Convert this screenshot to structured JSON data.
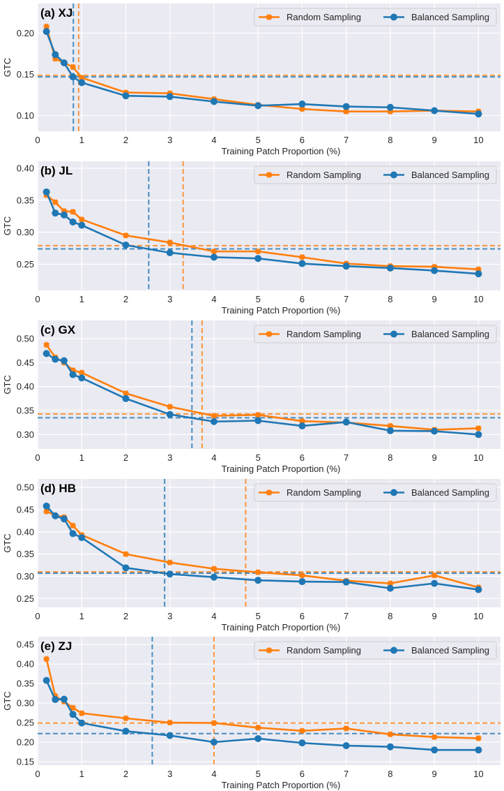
{
  "colors": {
    "random": "#ff7f0e",
    "balanced": "#1f77b4",
    "background": "#eaeaf2",
    "grid": "#ffffff"
  },
  "chart_data": [
    {
      "type": "line",
      "title": "(a) XJ",
      "xlabel": "Training Patch Proportion (%)",
      "ylabel": "GTC",
      "xlim": [
        0,
        10.5
      ],
      "ylim": [
        0.081,
        0.236
      ],
      "xticks": [
        0,
        1,
        2,
        3,
        4,
        5,
        6,
        7,
        8,
        9,
        10
      ],
      "yticks": [
        0.1,
        0.15,
        0.2
      ],
      "ytick_labels": [
        "0.10",
        "0.15",
        "0.20"
      ],
      "grid": true,
      "legend_position": "top-right",
      "x": [
        0.2,
        0.4,
        0.6,
        0.8,
        1,
        2,
        3,
        4,
        5,
        6,
        7,
        8,
        9,
        10
      ],
      "series": [
        {
          "name": "Random Sampling",
          "marker": "x",
          "values": [
            0.208,
            0.169,
            0.164,
            0.159,
            0.146,
            0.128,
            0.127,
            0.12,
            0.113,
            0.108,
            0.105,
            0.105,
            0.106,
            0.105
          ],
          "hline": 0.149,
          "vline": 0.93
        },
        {
          "name": "Balanced Sampling",
          "marker": "o",
          "values": [
            0.202,
            0.174,
            0.164,
            0.147,
            0.14,
            0.124,
            0.123,
            0.117,
            0.112,
            0.114,
            0.111,
            0.11,
            0.106,
            0.102
          ],
          "hline": 0.147,
          "vline": 0.81
        }
      ]
    },
    {
      "type": "line",
      "title": "(b) JL",
      "xlabel": "Training Patch Proportion (%)",
      "ylabel": "GTC",
      "xlim": [
        0,
        10.5
      ],
      "ylim": [
        0.209,
        0.411
      ],
      "xticks": [
        0,
        1,
        2,
        3,
        4,
        5,
        6,
        7,
        8,
        9,
        10
      ],
      "yticks": [
        0.25,
        0.3,
        0.35,
        0.4
      ],
      "ytick_labels": [
        "0.25",
        "0.30",
        "0.35",
        "0.40"
      ],
      "grid": true,
      "legend_position": "top-right",
      "x": [
        0.2,
        0.4,
        0.6,
        0.8,
        1,
        2,
        3,
        4,
        5,
        6,
        7,
        8,
        9,
        10
      ],
      "series": [
        {
          "name": "Random Sampling",
          "marker": "x",
          "values": [
            0.358,
            0.347,
            0.333,
            0.332,
            0.32,
            0.295,
            0.284,
            0.27,
            0.27,
            0.261,
            0.251,
            0.247,
            0.246,
            0.242
          ],
          "hline": 0.279,
          "vline": 3.3
        },
        {
          "name": "Balanced Sampling",
          "marker": "o",
          "values": [
            0.363,
            0.33,
            0.327,
            0.316,
            0.311,
            0.28,
            0.268,
            0.261,
            0.259,
            0.251,
            0.247,
            0.244,
            0.24,
            0.235
          ],
          "hline": 0.274,
          "vline": 2.52
        }
      ]
    },
    {
      "type": "line",
      "title": "(c) GX",
      "xlabel": "Training Patch Proportion (%)",
      "ylabel": "GTC",
      "xlim": [
        0,
        10.5
      ],
      "ylim": [
        0.27,
        0.538
      ],
      "xticks": [
        0,
        1,
        2,
        3,
        4,
        5,
        6,
        7,
        8,
        9,
        10
      ],
      "yticks": [
        0.3,
        0.35,
        0.4,
        0.45,
        0.5
      ],
      "ytick_labels": [
        "0.30",
        "0.35",
        "0.40",
        "0.45",
        "0.50"
      ],
      "grid": true,
      "legend_position": "top-right",
      "x": [
        0.2,
        0.4,
        0.6,
        0.8,
        1,
        2,
        3,
        4,
        5,
        6,
        7,
        8,
        9,
        10
      ],
      "series": [
        {
          "name": "Random Sampling",
          "marker": "x",
          "values": [
            0.487,
            0.461,
            0.45,
            0.434,
            0.429,
            0.386,
            0.358,
            0.339,
            0.341,
            0.328,
            0.325,
            0.318,
            0.31,
            0.313
          ],
          "hline": 0.343,
          "vline": 3.73
        },
        {
          "name": "Balanced Sampling",
          "marker": "o",
          "values": [
            0.469,
            0.457,
            0.454,
            0.425,
            0.418,
            0.375,
            0.342,
            0.327,
            0.329,
            0.318,
            0.326,
            0.308,
            0.307,
            0.3
          ],
          "hline": 0.335,
          "vline": 3.5
        }
      ]
    },
    {
      "type": "line",
      "title": "(d) HB",
      "xlabel": "Training Patch Proportion (%)",
      "ylabel": "GTC",
      "xlim": [
        0,
        10.5
      ],
      "ylim": [
        0.23,
        0.519
      ],
      "xticks": [
        0,
        1,
        2,
        3,
        4,
        5,
        6,
        7,
        8,
        9,
        10
      ],
      "yticks": [
        0.25,
        0.3,
        0.35,
        0.4,
        0.45,
        0.5
      ],
      "ytick_labels": [
        "0.25",
        "0.30",
        "0.35",
        "0.40",
        "0.45",
        "0.50"
      ],
      "grid": true,
      "legend_position": "top-right",
      "x": [
        0.2,
        0.4,
        0.6,
        0.8,
        1,
        2,
        3,
        4,
        5,
        6,
        7,
        8,
        9,
        10
      ],
      "series": [
        {
          "name": "Random Sampling",
          "marker": "x",
          "values": [
            0.446,
            0.437,
            0.433,
            0.414,
            0.393,
            0.35,
            0.331,
            0.317,
            0.309,
            0.302,
            0.29,
            0.284,
            0.302,
            0.275
          ],
          "hline": 0.31,
          "vline": 4.72
        },
        {
          "name": "Balanced Sampling",
          "marker": "o",
          "values": [
            0.458,
            0.436,
            0.429,
            0.396,
            0.387,
            0.319,
            0.305,
            0.298,
            0.291,
            0.288,
            0.287,
            0.273,
            0.284,
            0.27
          ],
          "hline": 0.307,
          "vline": 2.88
        }
      ]
    },
    {
      "type": "line",
      "title": "(e) ZJ",
      "xlabel": "Training Patch Proportion (%)",
      "ylabel": "GTC",
      "xlim": [
        0,
        10.5
      ],
      "ylim": [
        0.141,
        0.47
      ],
      "xticks": [
        0,
        1,
        2,
        3,
        4,
        5,
        6,
        7,
        8,
        9,
        10
      ],
      "yticks": [
        0.15,
        0.2,
        0.25,
        0.3,
        0.35,
        0.4,
        0.45
      ],
      "ytick_labels": [
        "0.15",
        "0.20",
        "0.25",
        "0.30",
        "0.35",
        "0.40",
        "0.45"
      ],
      "grid": true,
      "legend_position": "top-right",
      "x": [
        0.2,
        0.4,
        0.6,
        0.8,
        1,
        2,
        3,
        4,
        5,
        6,
        7,
        8,
        9,
        10
      ],
      "series": [
        {
          "name": "Random Sampling",
          "marker": "x",
          "values": [
            0.413,
            0.318,
            0.304,
            0.288,
            0.274,
            0.261,
            0.25,
            0.249,
            0.237,
            0.229,
            0.235,
            0.22,
            0.213,
            0.21
          ],
          "hline": 0.249,
          "vline": 4.0
        },
        {
          "name": "Balanced Sampling",
          "marker": "o",
          "values": [
            0.358,
            0.309,
            0.31,
            0.271,
            0.249,
            0.228,
            0.217,
            0.2,
            0.209,
            0.198,
            0.191,
            0.188,
            0.18,
            0.18
          ],
          "hline": 0.222,
          "vline": 2.6
        }
      ]
    }
  ]
}
